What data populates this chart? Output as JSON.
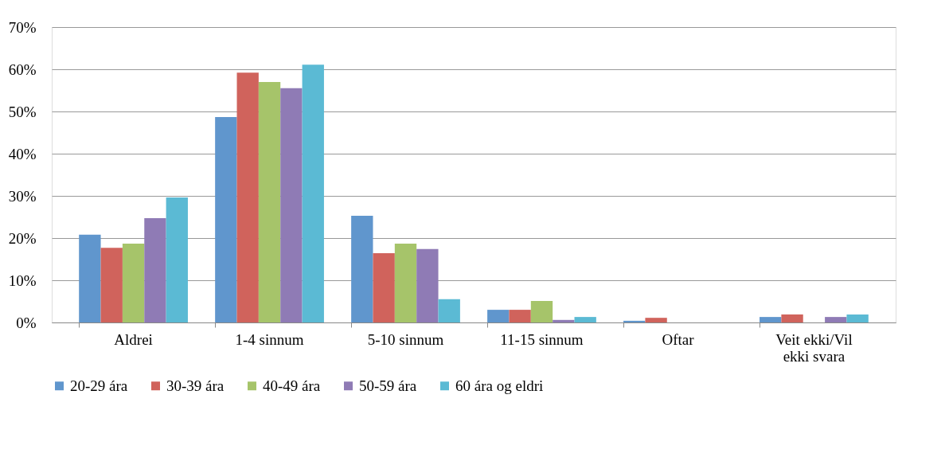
{
  "chart_data": {
    "type": "bar",
    "categories": [
      "Aldrei",
      "1-4 sinnum",
      "5-10 sinnum",
      "11-15 sinnum",
      "Oftar",
      "Veit ekki/Vil ekki svara"
    ],
    "series": [
      {
        "name": "20-29 ára",
        "color": "#6096cd",
        "values": [
          20.8,
          48.7,
          25.3,
          3.0,
          0.4,
          1.3
        ]
      },
      {
        "name": "30-39 ára",
        "color": "#d0635c",
        "values": [
          17.7,
          59.2,
          16.4,
          3.0,
          1.1,
          1.9
        ]
      },
      {
        "name": "40-49 ára",
        "color": "#a6c46a",
        "values": [
          18.7,
          57.0,
          18.7,
          5.1,
          0,
          0
        ]
      },
      {
        "name": "50-59 ára",
        "color": "#8f7bb5",
        "values": [
          24.7,
          55.5,
          17.4,
          0.6,
          0,
          1.3
        ]
      },
      {
        "name": "60 ára og eldri",
        "color": "#5bbad4",
        "values": [
          29.6,
          61.1,
          5.5,
          1.3,
          0,
          1.9
        ]
      }
    ],
    "ylim": [
      0,
      70
    ],
    "yticks": [
      {
        "value": 0,
        "label": "0%"
      },
      {
        "value": 10,
        "label": "10%"
      },
      {
        "value": 20,
        "label": "20%"
      },
      {
        "value": 30,
        "label": "30%"
      },
      {
        "value": 40,
        "label": "40%"
      },
      {
        "value": 50,
        "label": "50%"
      },
      {
        "value": 60,
        "label": "60%"
      },
      {
        "value": 70,
        "label": "70%"
      }
    ],
    "grid": "y",
    "legend": "bottom"
  }
}
